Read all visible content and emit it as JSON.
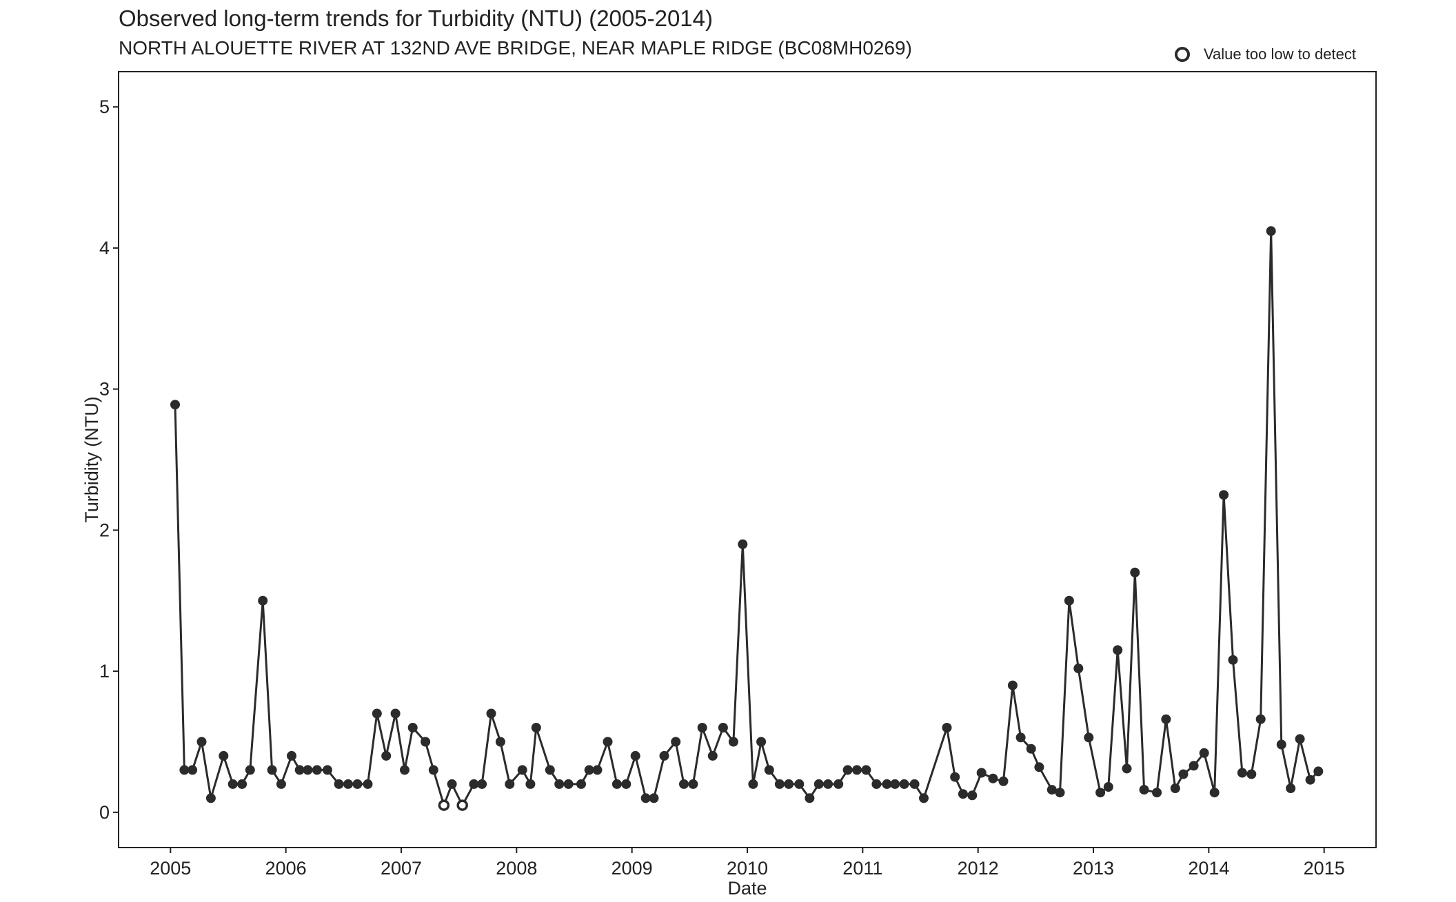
{
  "chart_data": {
    "type": "scatter",
    "title": "Observed long-term trends for Turbidity (NTU) (2005-2014)",
    "subtitle": "NORTH ALOUETTE RIVER AT 132ND AVE BRIDGE, NEAR MAPLE RIDGE (BC08MH0269)",
    "xlabel": "Date",
    "ylabel": "Turbidity (NTU)",
    "x_ticks": [
      "2005",
      "2006",
      "2007",
      "2008",
      "2009",
      "2010",
      "2011",
      "2012",
      "2013",
      "2014",
      "2015"
    ],
    "y_ticks": [
      "0",
      "1",
      "2",
      "3",
      "4",
      "5"
    ],
    "xlim": [
      2004.55,
      2015.45
    ],
    "ylim": [
      -0.25,
      5.25
    ],
    "grid": false,
    "legend": {
      "placement": "top-right",
      "entries": [
        {
          "label": "Value too low to detect",
          "marker": "open-circle"
        }
      ]
    },
    "colors": {
      "series": "#2b2b2b",
      "frame": "#222222",
      "background": "#ffffff"
    },
    "series": [
      {
        "points": [
          [
            2005.04,
            2.89,
            0
          ],
          [
            2005.12,
            0.3,
            0
          ],
          [
            2005.19,
            0.3,
            0
          ],
          [
            2005.27,
            0.5,
            0
          ],
          [
            2005.35,
            0.1,
            0
          ],
          [
            2005.46,
            0.4,
            0
          ],
          [
            2005.54,
            0.2,
            0
          ],
          [
            2005.62,
            0.2,
            0
          ],
          [
            2005.69,
            0.3,
            0
          ],
          [
            2005.8,
            1.5,
            0
          ],
          [
            2005.88,
            0.3,
            0
          ],
          [
            2005.96,
            0.2,
            0
          ],
          [
            2006.05,
            0.4,
            0
          ],
          [
            2006.12,
            0.3,
            0
          ],
          [
            2006.19,
            0.3,
            0
          ],
          [
            2006.27,
            0.3,
            0
          ],
          [
            2006.36,
            0.3,
            0
          ],
          [
            2006.46,
            0.2,
            0
          ],
          [
            2006.54,
            0.2,
            0
          ],
          [
            2006.62,
            0.2,
            0
          ],
          [
            2006.71,
            0.2,
            0
          ],
          [
            2006.79,
            0.7,
            0
          ],
          [
            2006.87,
            0.4,
            0
          ],
          [
            2006.95,
            0.7,
            0
          ],
          [
            2007.03,
            0.3,
            0
          ],
          [
            2007.1,
            0.6,
            0
          ],
          [
            2007.21,
            0.5,
            0
          ],
          [
            2007.28,
            0.3,
            0
          ],
          [
            2007.37,
            0.05,
            1
          ],
          [
            2007.44,
            0.2,
            0
          ],
          [
            2007.53,
            0.05,
            1
          ],
          [
            2007.63,
            0.2,
            0
          ],
          [
            2007.7,
            0.2,
            0
          ],
          [
            2007.78,
            0.7,
            0
          ],
          [
            2007.86,
            0.5,
            0
          ],
          [
            2007.94,
            0.2,
            0
          ],
          [
            2008.05,
            0.3,
            0
          ],
          [
            2008.12,
            0.2,
            0
          ],
          [
            2008.17,
            0.6,
            0
          ],
          [
            2008.29,
            0.3,
            0
          ],
          [
            2008.37,
            0.2,
            0
          ],
          [
            2008.45,
            0.2,
            0
          ],
          [
            2008.56,
            0.2,
            0
          ],
          [
            2008.63,
            0.3,
            0
          ],
          [
            2008.7,
            0.3,
            0
          ],
          [
            2008.79,
            0.5,
            0
          ],
          [
            2008.87,
            0.2,
            0
          ],
          [
            2008.95,
            0.2,
            0
          ],
          [
            2009.03,
            0.4,
            0
          ],
          [
            2009.12,
            0.1,
            0
          ],
          [
            2009.19,
            0.1,
            0
          ],
          [
            2009.28,
            0.4,
            0
          ],
          [
            2009.38,
            0.5,
            0
          ],
          [
            2009.45,
            0.2,
            0
          ],
          [
            2009.53,
            0.2,
            0
          ],
          [
            2009.61,
            0.6,
            0
          ],
          [
            2009.7,
            0.4,
            0
          ],
          [
            2009.79,
            0.6,
            0
          ],
          [
            2009.88,
            0.5,
            0
          ],
          [
            2009.96,
            1.9,
            0
          ],
          [
            2010.05,
            0.2,
            0
          ],
          [
            2010.12,
            0.5,
            0
          ],
          [
            2010.19,
            0.3,
            0
          ],
          [
            2010.28,
            0.2,
            0
          ],
          [
            2010.36,
            0.2,
            0
          ],
          [
            2010.45,
            0.2,
            0
          ],
          [
            2010.54,
            0.1,
            0
          ],
          [
            2010.62,
            0.2,
            0
          ],
          [
            2010.7,
            0.2,
            0
          ],
          [
            2010.79,
            0.2,
            0
          ],
          [
            2010.87,
            0.3,
            0
          ],
          [
            2010.95,
            0.3,
            0
          ],
          [
            2011.03,
            0.3,
            0
          ],
          [
            2011.12,
            0.2,
            0
          ],
          [
            2011.21,
            0.2,
            0
          ],
          [
            2011.28,
            0.2,
            0
          ],
          [
            2011.36,
            0.2,
            0
          ],
          [
            2011.45,
            0.2,
            0
          ],
          [
            2011.53,
            0.1,
            0
          ],
          [
            2011.73,
            0.6,
            0
          ],
          [
            2011.8,
            0.25,
            0
          ],
          [
            2011.87,
            0.13,
            0
          ],
          [
            2011.95,
            0.12,
            0
          ],
          [
            2012.03,
            0.28,
            0
          ],
          [
            2012.13,
            0.24,
            0
          ],
          [
            2012.22,
            0.22,
            0
          ],
          [
            2012.3,
            0.9,
            0
          ],
          [
            2012.37,
            0.53,
            0
          ],
          [
            2012.46,
            0.45,
            0
          ],
          [
            2012.53,
            0.32,
            0
          ],
          [
            2012.64,
            0.16,
            0
          ],
          [
            2012.71,
            0.14,
            0
          ],
          [
            2012.79,
            1.5,
            0
          ],
          [
            2012.87,
            1.02,
            0
          ],
          [
            2012.96,
            0.53,
            0
          ],
          [
            2013.06,
            0.14,
            0
          ],
          [
            2013.13,
            0.18,
            0
          ],
          [
            2013.21,
            1.15,
            0
          ],
          [
            2013.29,
            0.31,
            0
          ],
          [
            2013.36,
            1.7,
            0
          ],
          [
            2013.44,
            0.16,
            0
          ],
          [
            2013.55,
            0.14,
            0
          ],
          [
            2013.63,
            0.66,
            0
          ],
          [
            2013.71,
            0.17,
            0
          ],
          [
            2013.78,
            0.27,
            0
          ],
          [
            2013.87,
            0.33,
            0
          ],
          [
            2013.96,
            0.42,
            0
          ],
          [
            2014.05,
            0.14,
            0
          ],
          [
            2014.13,
            2.25,
            0
          ],
          [
            2014.21,
            1.08,
            0
          ],
          [
            2014.29,
            0.28,
            0
          ],
          [
            2014.37,
            0.27,
            0
          ],
          [
            2014.45,
            0.66,
            0
          ],
          [
            2014.54,
            4.12,
            0
          ],
          [
            2014.63,
            0.48,
            0
          ],
          [
            2014.71,
            0.17,
            0
          ],
          [
            2014.79,
            0.52,
            0
          ],
          [
            2014.88,
            0.23,
            0
          ],
          [
            2014.95,
            0.29,
            0
          ]
        ]
      }
    ]
  }
}
